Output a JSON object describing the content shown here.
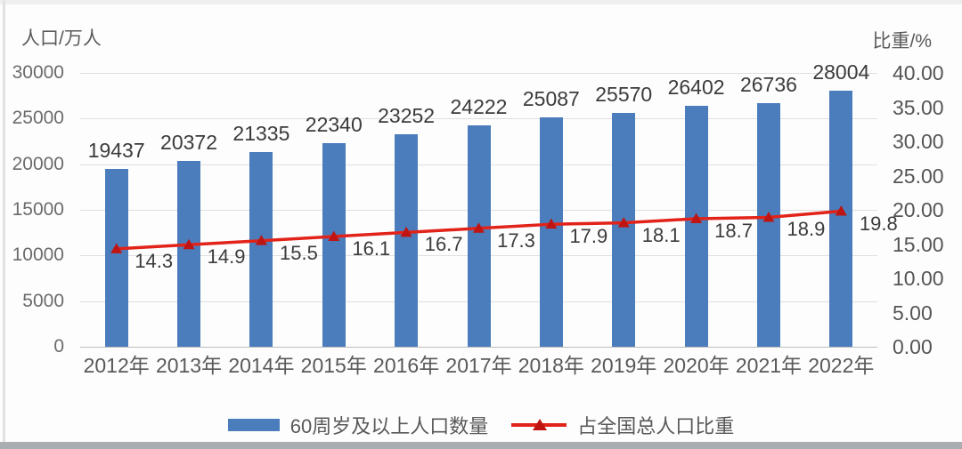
{
  "axes": {
    "left_title": "人口/万人",
    "right_title": "比重/%",
    "left_ticks": [
      "30000",
      "25000",
      "20000",
      "15000",
      "10000",
      "5000",
      "0"
    ],
    "right_ticks": [
      "40.00",
      "35.00",
      "30.00",
      "25.00",
      "20.00",
      "15.00",
      "10.00",
      "5.00",
      "0.00"
    ]
  },
  "legend": {
    "bar": {
      "label": "60周岁及以上人口数量"
    },
    "line": {
      "label": "占全国总人口比重"
    }
  },
  "colors": {
    "bar": "#4b7dbc",
    "line": "#e2231a",
    "marker": "#be1512",
    "grid": "#e0e0e0",
    "axis_line": "#bdbdbd"
  },
  "chart_data": {
    "type": "bar",
    "categories": [
      "2012年",
      "2013年",
      "2014年",
      "2015年",
      "2016年",
      "2017年",
      "2018年",
      "2019年",
      "2020年",
      "2021年",
      "2022年"
    ],
    "series": [
      {
        "name": "60周岁及以上人口数量",
        "type": "bar",
        "axis": "left",
        "values": [
          19437,
          20372,
          21335,
          22340,
          23252,
          24222,
          25087,
          25570,
          26402,
          26736,
          28004
        ]
      },
      {
        "name": "占全国总人口比重",
        "type": "line",
        "axis": "right",
        "values": [
          14.3,
          14.9,
          15.5,
          16.1,
          16.7,
          17.3,
          17.9,
          18.1,
          18.7,
          18.9,
          19.8
        ]
      }
    ],
    "left_axis": {
      "label": "人口/万人",
      "min": 0,
      "max": 30000,
      "step": 5000
    },
    "right_axis": {
      "label": "比重/%",
      "min": 0,
      "max": 40,
      "step": 5
    },
    "grid": true,
    "legend_position": "bottom"
  }
}
